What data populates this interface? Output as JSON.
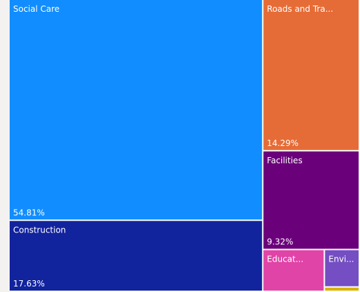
{
  "chart_data": {
    "type": "treemap",
    "categories": [
      "Social Care",
      "Construction",
      "Roads and Tra...",
      "Facilities",
      "Educat...",
      "Envi...",
      null
    ],
    "values": [
      54.81,
      17.63,
      14.29,
      9.32,
      2.52,
      1.28,
      0.15
    ],
    "value_labels": [
      "54.81%",
      "17.63%",
      "14.29%",
      "9.32%",
      null,
      null,
      null
    ],
    "colors": [
      "#118dff",
      "#12239e",
      "#e66c37",
      "#6b007b",
      "#e044a7",
      "#744ec2",
      "#d9b300"
    ]
  }
}
